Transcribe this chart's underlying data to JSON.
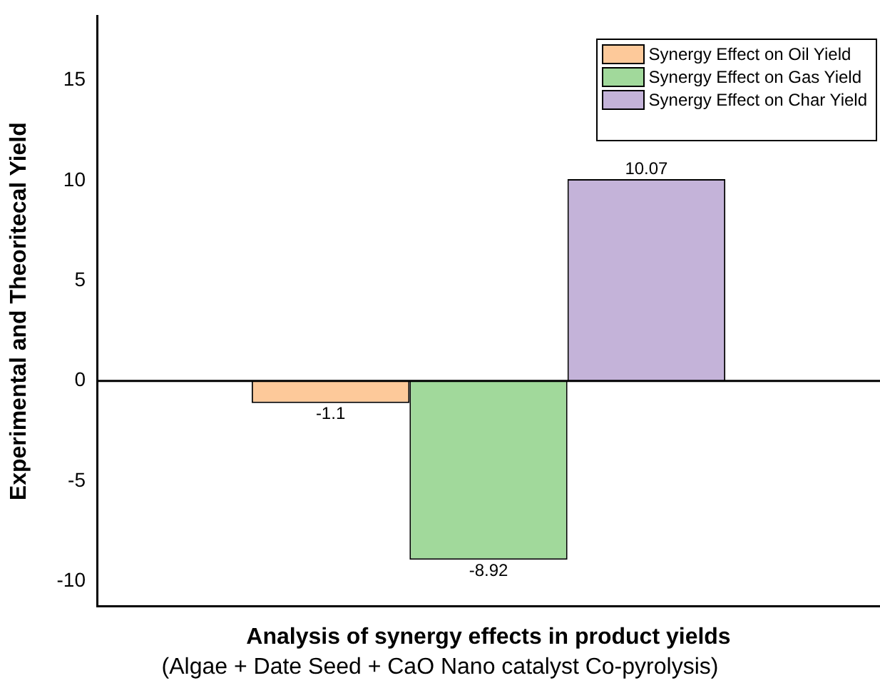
{
  "chart_data": {
    "type": "bar",
    "xlabel": "Analysis of synergy effects in product yields",
    "ylabel": "Experimental and Theoritecal Yield",
    "annotations": [
      "(Algae + Date Seed + CaO Nano catalyst Co-pyrolysis)"
    ],
    "categories": [
      null
    ],
    "series": [
      {
        "name": "Synergy Effect on Oil Yield",
        "color": "#fdc99a",
        "values": [
          -1.1
        ]
      },
      {
        "name": "Synergy Effect on Gas Yield",
        "color": "#a1d99b",
        "values": [
          -8.92
        ]
      },
      {
        "name": "Synergy Effect on Char Yield",
        "color": "#c4b3d9",
        "values": [
          10.07
        ]
      }
    ],
    "ylim": [
      -11.25,
      18.2
    ],
    "yticks": [
      -10,
      -5,
      0,
      5,
      10,
      15
    ],
    "ref_lines": [
      {
        "axis": "y",
        "value": 0,
        "color": "#000000"
      }
    ],
    "data_labels": true,
    "grid": false,
    "legend": "top right",
    "tick_labels": "y"
  }
}
